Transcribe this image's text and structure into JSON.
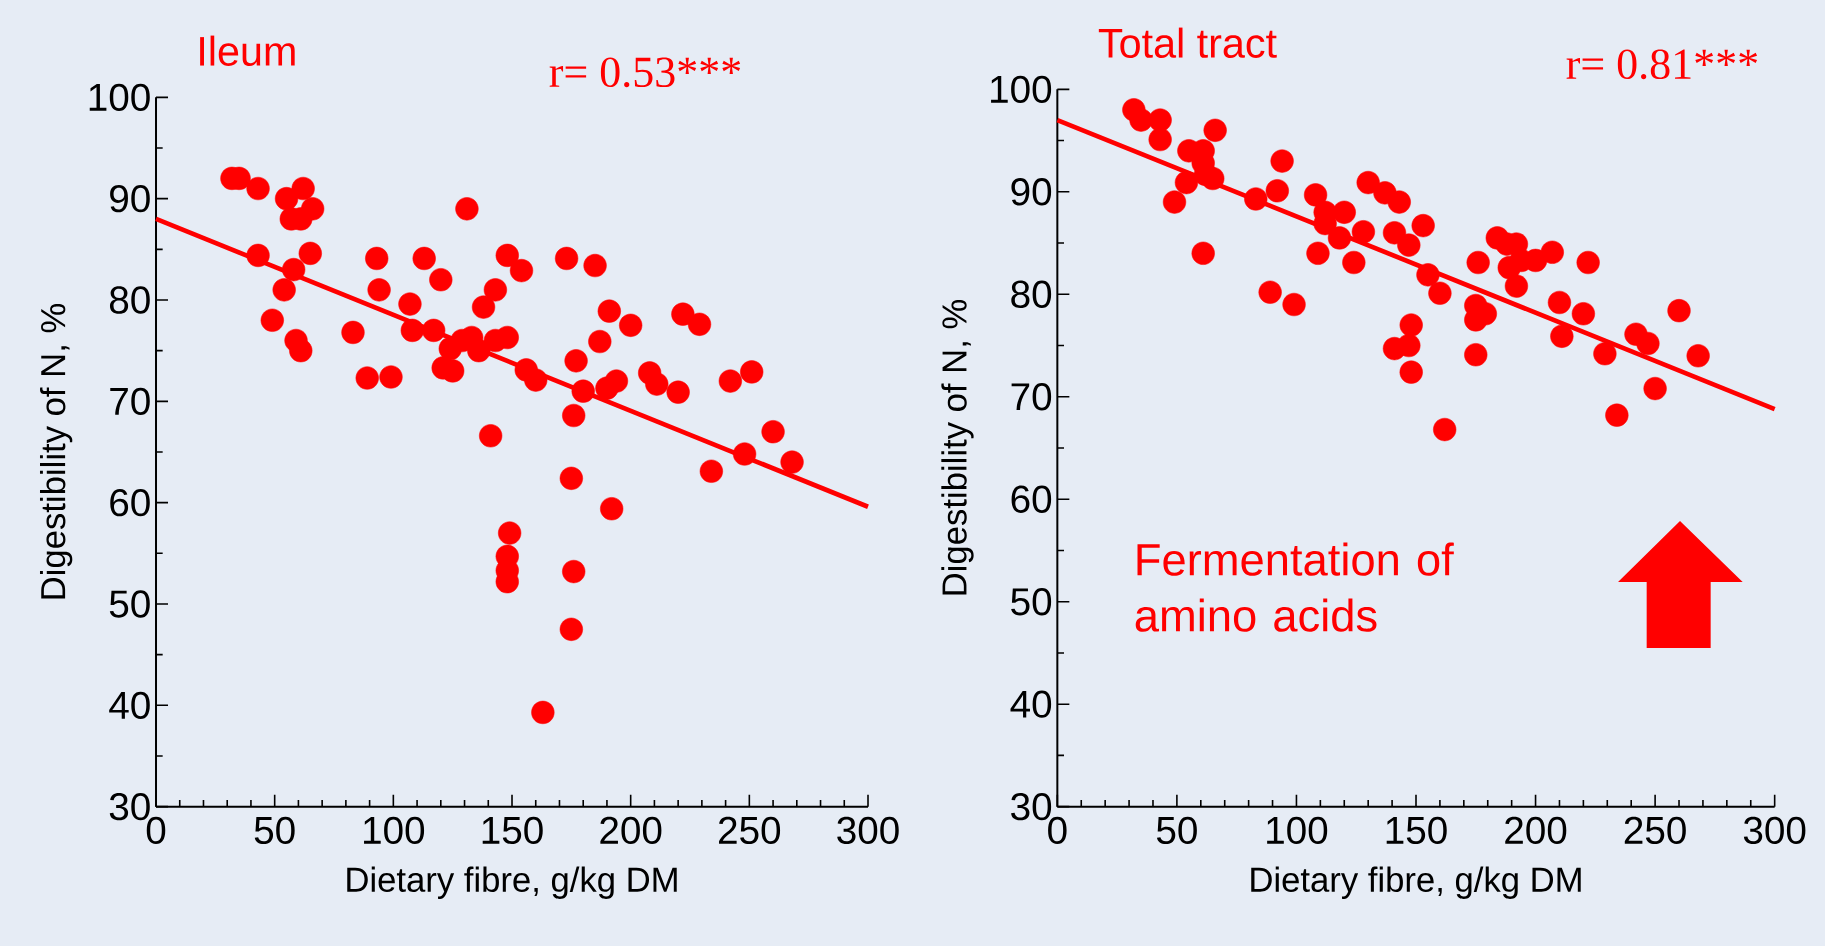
{
  "chart_data": [
    {
      "type": "scatter",
      "title": "Ileum",
      "xlabel": "Dietary fibre, g/kg DM",
      "ylabel": "Digestibility of N, %",
      "annotations": [
        "r= 0.53***"
      ],
      "xlim": [
        0,
        300
      ],
      "ylim": [
        30,
        100
      ],
      "xticks": [
        0,
        50,
        100,
        150,
        200,
        250,
        300
      ],
      "yticks": [
        30,
        40,
        50,
        60,
        70,
        80,
        90,
        100
      ],
      "marker": "circle",
      "series": [
        {
          "color": "#ff0000",
          "x": [
            32,
            35,
            43,
            43,
            49,
            54,
            55,
            58,
            57,
            62,
            61,
            66,
            59,
            61,
            65,
            83,
            89,
            93,
            94,
            99,
            107,
            108,
            113,
            117,
            120,
            121,
            124,
            125,
            129,
            131,
            133,
            136,
            138,
            141,
            143,
            143,
            148,
            148,
            149,
            148,
            148,
            148,
            154,
            156,
            160,
            163,
            173,
            175,
            175,
            176,
            176,
            177,
            180,
            185,
            187,
            190,
            191,
            192,
            194,
            200,
            208,
            211,
            222,
            220,
            229,
            234,
            242,
            251,
            248,
            260,
            268
          ],
          "values": [
            92,
            92,
            91,
            84.4,
            78,
            81,
            90,
            83,
            88,
            91,
            88,
            89,
            76,
            75,
            84.6,
            76.8,
            72.3,
            84.1,
            81,
            72.4,
            79.6,
            77,
            84.1,
            77,
            82,
            73.3,
            75.2,
            73,
            76,
            89,
            76.3,
            75,
            79.3,
            66.6,
            76,
            81,
            84.4,
            76.3,
            57,
            54.7,
            53.3,
            52.2,
            82.9,
            73.1,
            72.1,
            39.3,
            84.1,
            62.4,
            47.5,
            53.2,
            68.6,
            74,
            71,
            83.4,
            75.9,
            71.3,
            78.9,
            59.4,
            72,
            77.5,
            72.8,
            71.7,
            78.6,
            70.9,
            77.6,
            63.1,
            72,
            72.9,
            64.8,
            67,
            64
          ]
        },
        {
          "type": "line",
          "color": "#ff0000",
          "marker": "none",
          "line_style": "solid",
          "x": [
            0,
            300
          ],
          "values": [
            88,
            59.6
          ]
        }
      ]
    },
    {
      "type": "scatter",
      "title": "Total tract",
      "xlabel": "Dietary fibre, g/kg DM",
      "ylabel": "Digestibility of N, %",
      "annotations": [
        "r= 0.81***",
        "Fermentation of amino acids"
      ],
      "xlim": [
        0,
        300
      ],
      "ylim": [
        30,
        100
      ],
      "xticks": [
        0,
        50,
        100,
        150,
        200,
        250,
        300
      ],
      "yticks": [
        30,
        40,
        50,
        60,
        70,
        80,
        90,
        100
      ],
      "marker": "circle",
      "series": [
        {
          "color": "#ff0000",
          "x": [
            32,
            35,
            43,
            43,
            49,
            54,
            55,
            61,
            61,
            62,
            66,
            65,
            61,
            83,
            89,
            94,
            92,
            99,
            108,
            109,
            112,
            112,
            120,
            118,
            124,
            128,
            130,
            137,
            143,
            141,
            147,
            153,
            141,
            148,
            147,
            148,
            155,
            160,
            162,
            176,
            175,
            175,
            179,
            175,
            184,
            188,
            192,
            189,
            192,
            194,
            207,
            200,
            210,
            211,
            220,
            222,
            229,
            234,
            242,
            247,
            250,
            260,
            268
          ],
          "values": [
            98,
            97,
            97,
            95.1,
            89,
            90.9,
            94,
            94,
            92.8,
            91.7,
            96,
            91.3,
            84,
            89.3,
            80.2,
            93,
            90.1,
            79,
            89.7,
            84,
            86.9,
            88,
            88,
            85.5,
            83.1,
            86.1,
            90.9,
            89.9,
            89,
            86,
            84.8,
            86.7,
            74.7,
            77,
            75,
            72.4,
            81.9,
            80.1,
            66.8,
            83.1,
            78.9,
            77.5,
            78.1,
            74.1,
            85.5,
            84.9,
            84.9,
            82.6,
            80.8,
            83.3,
            84.1,
            83.3,
            79.2,
            75.9,
            78.1,
            83.1,
            74.2,
            68.2,
            76.1,
            75.2,
            70.8,
            78.4,
            74
          ]
        },
        {
          "type": "line",
          "color": "#ff0000",
          "marker": "none",
          "line_style": "solid",
          "x": [
            0,
            300
          ],
          "values": [
            97,
            68.8
          ]
        }
      ]
    }
  ]
}
